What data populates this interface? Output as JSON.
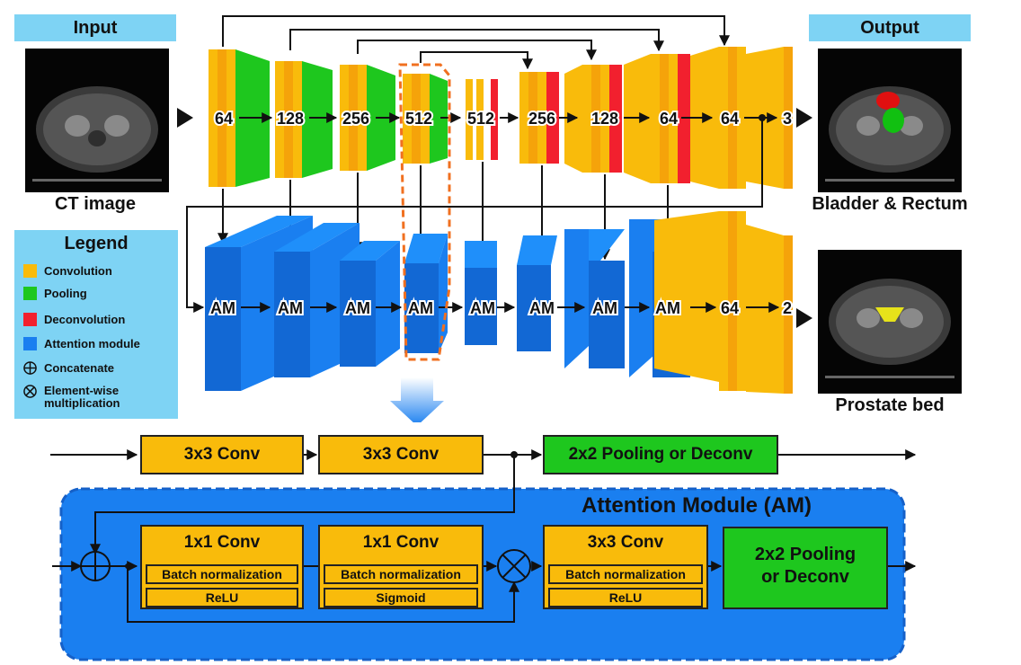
{
  "input_header": "Input",
  "output_header": "Output",
  "ct_caption": "CT image",
  "out1_caption": "Bladder & Rectum",
  "out2_caption": "Prostate bed",
  "encoder_labels": [
    "64",
    "128",
    "256",
    "512",
    "512",
    "256",
    "128",
    "64",
    "64",
    "3"
  ],
  "am_labels": [
    "AM",
    "AM",
    "AM",
    "AM",
    "AM",
    "AM",
    "AM",
    "AM"
  ],
  "am_tail": [
    "64",
    "2"
  ],
  "legend": {
    "title": "Legend",
    "items": [
      {
        "label": "Convolution",
        "color": "#f9bb0b"
      },
      {
        "label": "Pooling",
        "color": "#1ec71e"
      },
      {
        "label": "Deconvolution",
        "color": "#f2202e"
      },
      {
        "label": "Attention module",
        "color": "#1a7ff0"
      },
      {
        "label": "Concatenate",
        "icon": "concatenate-icon"
      },
      {
        "label": "Element-wise multiplication",
        "icon": "multiply-icon"
      }
    ]
  },
  "detail": {
    "conv1": "3x3 Conv",
    "conv2": "3x3 Conv",
    "pool": "2x2 Pooling or Deconv",
    "am_title": "Attention Module (AM)",
    "block1": {
      "title": "1x1 Conv",
      "bn": "Batch normalization",
      "act": "ReLU"
    },
    "block2": {
      "title": "1x1 Conv",
      "bn": "Batch normalization",
      "act": "Sigmoid"
    },
    "block3": {
      "title": "3x3 Conv",
      "bn": "Batch normalization",
      "act": "ReLU"
    },
    "block4_line1": "2x2 Pooling",
    "block4_line2": "or Deconv"
  },
  "colors": {
    "conv": "#f9bb0b",
    "pool": "#1ec71e",
    "deconv": "#f2202e",
    "attention": "#1a7ff0",
    "panel": "#7ed3f4"
  }
}
